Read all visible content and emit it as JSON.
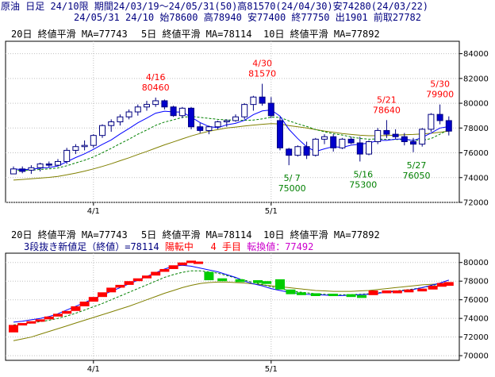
{
  "header": {
    "line1": "原油 日足 24/10限 期間24/03/19～24/05/31(50)高81570(24/04/30)安74280(24/03/22)",
    "line2": "24/05/31 24/10 始78600 高78940 安77400 終77750 出1901 前取27782"
  },
  "colors": {
    "up_candle": "#ffffff",
    "down_candle": "#0000cc",
    "candle_edge": "#000080",
    "ma5": "#0000ff",
    "ma10": "#008000",
    "ma20": "#808000",
    "hi_ann": "#ff0000",
    "lo_ann": "#008000",
    "brick_up": "#ff0000",
    "brick_down": "#00cc00",
    "turn": "#cc00cc"
  },
  "chart_data": [
    {
      "type": "candlestick",
      "legend": [
        {
          "text": "20日 終値平滑 MA=77743",
          "color": "#808000"
        },
        {
          "text": "5日 終値平滑 MA=78114",
          "color": "#0000ff"
        },
        {
          "text": "10日 終値平滑 MA=77892",
          "color": "#008000"
        }
      ],
      "ylim": [
        72000,
        85000
      ],
      "yticks": [
        "84000",
        "82000",
        "80000",
        "78000",
        "76000",
        "74000",
        "72000"
      ],
      "xticks": [
        {
          "label": "4/1",
          "index": 9
        },
        {
          "label": "5/1",
          "index": 29
        }
      ],
      "ohlc": [
        [
          74300,
          74900,
          74280,
          74700
        ],
        [
          74700,
          74900,
          74350,
          74500
        ],
        [
          74600,
          75000,
          74300,
          74800
        ],
        [
          74800,
          75200,
          74500,
          75100
        ],
        [
          75100,
          75300,
          74800,
          75000
        ],
        [
          75000,
          75500,
          74900,
          75300
        ],
        [
          75300,
          76400,
          75100,
          76200
        ],
        [
          76200,
          76700,
          75900,
          76500
        ],
        [
          76500,
          77000,
          76200,
          76600
        ],
        [
          76600,
          77500,
          76400,
          77400
        ],
        [
          77400,
          78300,
          77200,
          78200
        ],
        [
          78200,
          78700,
          77700,
          78500
        ],
        [
          78500,
          79100,
          78200,
          78900
        ],
        [
          78900,
          79500,
          78700,
          79300
        ],
        [
          79300,
          79900,
          79000,
          79700
        ],
        [
          79700,
          80200,
          79400,
          79900
        ],
        [
          79900,
          80460,
          79700,
          80200
        ],
        [
          80200,
          80300,
          79500,
          79700
        ],
        [
          79700,
          79800,
          78900,
          79000
        ],
        [
          79000,
          79700,
          78800,
          79600
        ],
        [
          79600,
          79700,
          77900,
          78100
        ],
        [
          78100,
          78400,
          77600,
          77800
        ],
        [
          77800,
          78200,
          77500,
          78100
        ],
        [
          78100,
          78600,
          77900,
          78500
        ],
        [
          78500,
          78700,
          78100,
          78600
        ],
        [
          78600,
          79100,
          78500,
          78900
        ],
        [
          78900,
          80000,
          78700,
          79900
        ],
        [
          79900,
          80600,
          79400,
          80500
        ],
        [
          80500,
          81570,
          79800,
          80000
        ],
        [
          80000,
          80500,
          78800,
          79000
        ],
        [
          78600,
          78900,
          76200,
          76400
        ],
        [
          76300,
          76400,
          75000,
          75800
        ],
        [
          75800,
          76600,
          75700,
          76500
        ],
        [
          76500,
          76900,
          75500,
          75800
        ],
        [
          75800,
          77200,
          75700,
          77100
        ],
        [
          77100,
          77500,
          76700,
          77300
        ],
        [
          77300,
          77500,
          76100,
          76400
        ],
        [
          76400,
          77200,
          76300,
          77100
        ],
        [
          77100,
          77300,
          76700,
          76800
        ],
        [
          76800,
          77300,
          75300,
          75900
        ],
        [
          75900,
          77000,
          75800,
          76900
        ],
        [
          76900,
          78000,
          76700,
          77800
        ],
        [
          77800,
          78640,
          77200,
          77500
        ],
        [
          77500,
          77900,
          77100,
          77300
        ],
        [
          77300,
          77600,
          76600,
          76900
        ],
        [
          76900,
          77200,
          76050,
          76700
        ],
        [
          76700,
          78000,
          76500,
          77900
        ],
        [
          77900,
          79200,
          77700,
          79100
        ],
        [
          79100,
          79900,
          78300,
          78600
        ],
        [
          78600,
          78940,
          77400,
          77750
        ]
      ],
      "ma5": [
        74700,
        74650,
        74680,
        74760,
        74820,
        74940,
        75280,
        75620,
        75920,
        76280,
        76680,
        77040,
        77520,
        77960,
        78420,
        78800,
        79200,
        79360,
        79300,
        79280,
        78880,
        78440,
        78120,
        78020,
        78260,
        78380,
        78620,
        79080,
        79380,
        79460,
        78960,
        77900,
        77140,
        76480,
        76100,
        76320,
        76500,
        76440,
        76620,
        76700,
        76780,
        77000,
        77000,
        77100,
        77120,
        76980,
        77240,
        77600,
        78000,
        78114
      ],
      "ma10": [
        74600,
        74560,
        74600,
        74660,
        74700,
        74780,
        74960,
        75180,
        75400,
        75660,
        76000,
        76360,
        76740,
        77100,
        77500,
        77840,
        78220,
        78480,
        78660,
        78860,
        78940,
        78860,
        78780,
        78700,
        78660,
        78620,
        78620,
        78640,
        78740,
        78880,
        78860,
        78580,
        78340,
        78130,
        77880,
        77700,
        77540,
        77440,
        77280,
        77160,
        77100,
        77120,
        77080,
        77080,
        77060,
        77020,
        77000,
        77150,
        77500,
        77892
      ],
      "ma20": [
        73800,
        73850,
        73900,
        73960,
        74020,
        74100,
        74220,
        74360,
        74520,
        74700,
        74900,
        75120,
        75360,
        75600,
        75860,
        76110,
        76380,
        76640,
        76880,
        77120,
        77360,
        77560,
        77740,
        77880,
        78000,
        78080,
        78160,
        78240,
        78300,
        78360,
        78320,
        78200,
        78100,
        78000,
        77880,
        77760,
        77660,
        77560,
        77480,
        77420,
        77380,
        77380,
        77400,
        77420,
        77460,
        77480,
        77520,
        77580,
        77660,
        77743
      ],
      "annotations": [
        {
          "index": 16,
          "date": "4/16",
          "value": "80460",
          "kind": "high"
        },
        {
          "index": 28,
          "date": "4/30",
          "value": "81570",
          "kind": "high"
        },
        {
          "index": 42,
          "date": "5/21",
          "value": "78640",
          "kind": "high"
        },
        {
          "index": 48,
          "date": "5/30",
          "value": "79900",
          "kind": "high"
        },
        {
          "index": 31,
          "date": "5/ 7",
          "value": "75000",
          "kind": "low"
        },
        {
          "index": 39,
          "date": "5/16",
          "value": "75300",
          "kind": "low"
        },
        {
          "index": 45,
          "date": "5/27",
          "value": "76050",
          "kind": "low"
        }
      ]
    },
    {
      "type": "three-line-break",
      "legend": [
        {
          "text": "20日 終値平滑 MA=77743",
          "color": "#808000"
        },
        {
          "text": "5日 終値平滑 MA=78114",
          "color": "#0000ff"
        },
        {
          "text": "10日 終値平滑 MA=77892",
          "color": "#008000"
        }
      ],
      "info": {
        "prefix": "3段抜き新値足（終値）=78114",
        "state": "陽転中",
        "count": "4 手目",
        "turn": "転換値：77492"
      },
      "ylim": [
        69500,
        81000
      ],
      "yticks": [
        "80000",
        "78000",
        "76000",
        "74000",
        "72000",
        "70000"
      ],
      "xticks": [
        {
          "label": "4/1",
          "index": 9
        },
        {
          "label": "5/1",
          "index": 29
        }
      ],
      "bricks": [
        [
          0,
          72500,
          73300,
          "up"
        ],
        [
          1,
          73300,
          73500,
          "up"
        ],
        [
          2,
          73500,
          73700,
          "up"
        ],
        [
          3,
          73700,
          73900,
          "up"
        ],
        [
          4,
          73900,
          74200,
          "up"
        ],
        [
          5,
          74200,
          74500,
          "up"
        ],
        [
          6,
          74500,
          74800,
          "up"
        ],
        [
          7,
          74800,
          75300,
          "up"
        ],
        [
          8,
          75300,
          75800,
          "up"
        ],
        [
          9,
          75800,
          76300,
          "up"
        ],
        [
          10,
          76300,
          76800,
          "up"
        ],
        [
          11,
          76800,
          77300,
          "up"
        ],
        [
          12,
          77300,
          77600,
          "up"
        ],
        [
          13,
          77600,
          78000,
          "up"
        ],
        [
          14,
          78000,
          78300,
          "up"
        ],
        [
          15,
          78300,
          78600,
          "up"
        ],
        [
          16,
          78600,
          79000,
          "up"
        ],
        [
          17,
          79000,
          79300,
          "up"
        ],
        [
          18,
          79300,
          79700,
          "up"
        ],
        [
          19,
          79700,
          80000,
          "up"
        ],
        [
          20,
          80000,
          80200,
          "up"
        ],
        [
          20.8,
          79900,
          80100,
          "up"
        ],
        [
          22,
          78100,
          79000,
          "down"
        ],
        [
          23.5,
          78000,
          78300,
          "down"
        ],
        [
          25.5,
          77900,
          78200,
          "down"
        ],
        [
          27.5,
          77800,
          78100,
          "down"
        ],
        [
          28.5,
          77700,
          78000,
          "down"
        ],
        [
          30,
          77100,
          78200,
          "down"
        ],
        [
          31.2,
          76600,
          77100,
          "down"
        ],
        [
          32.4,
          76500,
          76800,
          "down"
        ],
        [
          34,
          76400,
          76700,
          "down"
        ],
        [
          36,
          76400,
          76650,
          "down"
        ],
        [
          38,
          76300,
          76600,
          "down"
        ],
        [
          39.2,
          76200,
          76500,
          "down"
        ],
        [
          40.5,
          76500,
          77000,
          "up"
        ],
        [
          42,
          76700,
          77000,
          "up"
        ],
        [
          43.2,
          76700,
          77000,
          "up"
        ],
        [
          44.5,
          76800,
          77100,
          "up"
        ],
        [
          46,
          76900,
          77200,
          "up"
        ],
        [
          47.2,
          77100,
          77500,
          "up"
        ],
        [
          48.2,
          77400,
          77800,
          "up"
        ],
        [
          49,
          77500,
          77900,
          "up"
        ]
      ],
      "ma5": [
        73600,
        73700,
        73850,
        74000,
        74200,
        74500,
        74900,
        75300,
        75700,
        76100,
        76500,
        76900,
        77300,
        77700,
        78100,
        78500,
        78900,
        79300,
        79600,
        79700,
        79600,
        79400,
        79200,
        79000,
        78700,
        78400,
        78000,
        77700,
        77500,
        77200,
        77000,
        76800,
        76700,
        76600,
        76550,
        76500,
        76450,
        76450,
        76500,
        76550,
        76600,
        76700,
        76800,
        76900,
        77000,
        77100,
        77300,
        77550,
        77800,
        78114
      ],
      "ma10": [
        73300,
        73400,
        73500,
        73650,
        73800,
        74000,
        74250,
        74550,
        74900,
        75250,
        75600,
        76000,
        76400,
        76800,
        77200,
        77600,
        78000,
        78400,
        78700,
        78950,
        79100,
        79100,
        79000,
        78850,
        78600,
        78350,
        78100,
        77850,
        77650,
        77400,
        77200,
        77000,
        76850,
        76750,
        76650,
        76600,
        76550,
        76550,
        76550,
        76600,
        76650,
        76750,
        76850,
        76950,
        77050,
        77150,
        77300,
        77500,
        77700,
        77892
      ],
      "ma20": [
        71600,
        71800,
        72000,
        72300,
        72600,
        72900,
        73200,
        73500,
        73800,
        74100,
        74400,
        74700,
        75000,
        75300,
        75650,
        76000,
        76350,
        76700,
        77000,
        77300,
        77550,
        77750,
        77850,
        77900,
        77900,
        77850,
        77800,
        77700,
        77600,
        77500,
        77400,
        77300,
        77200,
        77100,
        77000,
        76950,
        76900,
        76900,
        76900,
        76950,
        77000,
        77100,
        77200,
        77300,
        77400,
        77500,
        77600,
        77650,
        77700,
        77743
      ]
    }
  ]
}
